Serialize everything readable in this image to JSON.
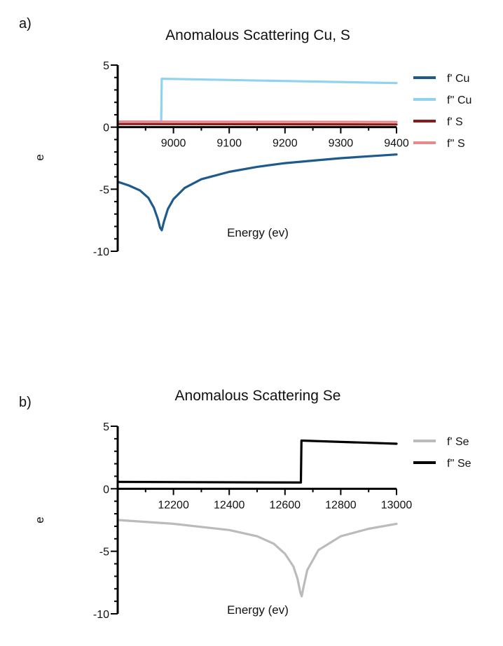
{
  "chart_data": [
    {
      "panel_label": "a)",
      "type": "line",
      "title": "Anomalous Scattering Cu, S",
      "xlabel": "Energy (ev)",
      "ylabel": "e",
      "xlim": [
        8900,
        9400
      ],
      "ylim": [
        -10,
        5
      ],
      "x_ticks": [
        9000,
        9100,
        9200,
        9300,
        9400
      ],
      "y_ticks": [
        5,
        0,
        -5,
        -10
      ],
      "legend_position": "right",
      "grid": false,
      "series": [
        {
          "name": "f' Cu",
          "color": "#1f5a8c",
          "x": [
            8900,
            8920,
            8940,
            8955,
            8965,
            8972,
            8976,
            8979,
            8983,
            8990,
            9000,
            9020,
            9050,
            9100,
            9150,
            9200,
            9250,
            9300,
            9350,
            9400
          ],
          "y": [
            -4.4,
            -4.7,
            -5.1,
            -5.7,
            -6.5,
            -7.4,
            -8.1,
            -8.3,
            -7.6,
            -6.6,
            -5.8,
            -4.9,
            -4.2,
            -3.6,
            -3.2,
            -2.9,
            -2.7,
            -2.5,
            -2.35,
            -2.2
          ]
        },
        {
          "name": "f'' Cu",
          "color": "#8fd3f0",
          "x": [
            8900,
            8978,
            8979,
            9400
          ],
          "y": [
            0.45,
            0.45,
            3.9,
            3.55
          ]
        },
        {
          "name": "f' S",
          "color": "#8b1a1a",
          "x": [
            8900,
            9400
          ],
          "y": [
            0.25,
            0.22
          ]
        },
        {
          "name": "f'' S",
          "color": "#e88a8a",
          "x": [
            8900,
            9400
          ],
          "y": [
            0.45,
            0.42
          ]
        }
      ]
    },
    {
      "panel_label": "b)",
      "type": "line",
      "title": "Anomalous Scattering Se",
      "xlabel": "Energy (ev)",
      "ylabel": "e",
      "xlim": [
        12000,
        13000
      ],
      "ylim": [
        -10,
        5
      ],
      "x_ticks": [
        12200,
        12400,
        12600,
        12800,
        13000
      ],
      "y_ticks": [
        5,
        0,
        -5,
        -10
      ],
      "legend_position": "right",
      "grid": false,
      "series": [
        {
          "name": "f' Se",
          "color": "#bbbbbb",
          "x": [
            12000,
            12200,
            12400,
            12500,
            12560,
            12600,
            12630,
            12645,
            12655,
            12660,
            12665,
            12680,
            12720,
            12800,
            12900,
            13000
          ],
          "y": [
            -2.5,
            -2.8,
            -3.3,
            -3.8,
            -4.4,
            -5.2,
            -6.2,
            -7.2,
            -8.3,
            -8.6,
            -8.0,
            -6.5,
            -4.9,
            -3.8,
            -3.2,
            -2.8
          ]
        },
        {
          "name": "f'' Se",
          "color": "#000000",
          "x": [
            12000,
            12657,
            12659,
            13000
          ],
          "y": [
            0.55,
            0.5,
            3.85,
            3.6
          ]
        }
      ]
    }
  ]
}
